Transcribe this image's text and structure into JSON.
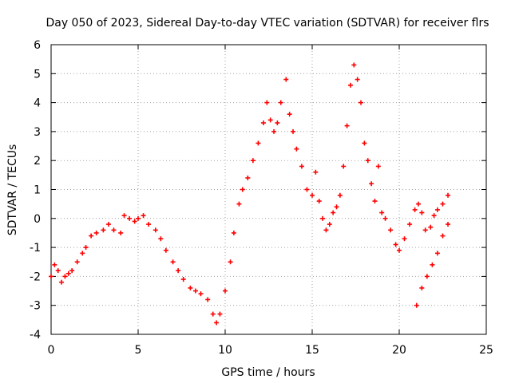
{
  "chart_data": {
    "type": "scatter",
    "title": "Day 050 of 2023, Sidereal Day-to-day VTEC variation (SDTVAR) for receiver flrs",
    "xlabel": "GPS time / hours",
    "ylabel": "SDTVAR / TECUs",
    "xlim": [
      0,
      25
    ],
    "ylim": [
      -4,
      6
    ],
    "xticks": [
      0,
      5,
      10,
      15,
      20,
      25
    ],
    "yticks": [
      -4,
      -3,
      -2,
      -1,
      0,
      1,
      2,
      3,
      4,
      5,
      6
    ],
    "grid": true,
    "marker": "+",
    "series": [
      {
        "name": "SDTVAR",
        "color": "#ff0000",
        "points": [
          [
            0.0,
            -2.0
          ],
          [
            0.2,
            -1.6
          ],
          [
            0.4,
            -1.8
          ],
          [
            0.6,
            -2.2
          ],
          [
            0.8,
            -2.0
          ],
          [
            1.0,
            -1.9
          ],
          [
            1.2,
            -1.8
          ],
          [
            1.5,
            -1.5
          ],
          [
            1.8,
            -1.2
          ],
          [
            2.0,
            -1.0
          ],
          [
            2.3,
            -0.6
          ],
          [
            2.6,
            -0.5
          ],
          [
            3.0,
            -0.4
          ],
          [
            3.3,
            -0.2
          ],
          [
            3.6,
            -0.4
          ],
          [
            4.0,
            -0.5
          ],
          [
            4.2,
            0.1
          ],
          [
            4.5,
            0.0
          ],
          [
            4.8,
            -0.1
          ],
          [
            5.0,
            0.0
          ],
          [
            5.3,
            0.1
          ],
          [
            5.6,
            -0.2
          ],
          [
            6.0,
            -0.4
          ],
          [
            6.3,
            -0.7
          ],
          [
            6.6,
            -1.1
          ],
          [
            7.0,
            -1.5
          ],
          [
            7.3,
            -1.8
          ],
          [
            7.6,
            -2.1
          ],
          [
            8.0,
            -2.4
          ],
          [
            8.3,
            -2.5
          ],
          [
            8.6,
            -2.6
          ],
          [
            9.0,
            -2.8
          ],
          [
            9.3,
            -3.3
          ],
          [
            9.5,
            -3.6
          ],
          [
            9.7,
            -3.3
          ],
          [
            10.0,
            -2.5
          ],
          [
            10.3,
            -1.5
          ],
          [
            10.5,
            -0.5
          ],
          [
            10.8,
            0.5
          ],
          [
            11.0,
            1.0
          ],
          [
            11.3,
            1.4
          ],
          [
            11.6,
            2.0
          ],
          [
            11.9,
            2.6
          ],
          [
            12.2,
            3.3
          ],
          [
            12.4,
            4.0
          ],
          [
            12.6,
            3.4
          ],
          [
            12.8,
            3.0
          ],
          [
            13.0,
            3.3
          ],
          [
            13.2,
            4.0
          ],
          [
            13.5,
            4.8
          ],
          [
            13.7,
            3.6
          ],
          [
            13.9,
            3.0
          ],
          [
            14.1,
            2.4
          ],
          [
            14.4,
            1.8
          ],
          [
            14.7,
            1.0
          ],
          [
            15.0,
            0.8
          ],
          [
            15.2,
            1.6
          ],
          [
            15.4,
            0.6
          ],
          [
            15.6,
            0.0
          ],
          [
            15.8,
            -0.4
          ],
          [
            16.0,
            -0.2
          ],
          [
            16.2,
            0.2
          ],
          [
            16.4,
            0.4
          ],
          [
            16.6,
            0.8
          ],
          [
            16.8,
            1.8
          ],
          [
            17.0,
            3.2
          ],
          [
            17.2,
            4.6
          ],
          [
            17.4,
            5.3
          ],
          [
            17.6,
            4.8
          ],
          [
            17.8,
            4.0
          ],
          [
            18.0,
            2.6
          ],
          [
            18.2,
            2.0
          ],
          [
            18.4,
            1.2
          ],
          [
            18.6,
            0.6
          ],
          [
            18.8,
            1.8
          ],
          [
            19.0,
            0.2
          ],
          [
            19.2,
            0.0
          ],
          [
            19.5,
            -0.4
          ],
          [
            19.8,
            -0.9
          ],
          [
            20.0,
            -1.1
          ],
          [
            20.3,
            -0.7
          ],
          [
            20.6,
            -0.2
          ],
          [
            20.9,
            0.3
          ],
          [
            21.1,
            0.5
          ],
          [
            21.3,
            0.2
          ],
          [
            21.5,
            -0.4
          ],
          [
            21.8,
            -0.3
          ],
          [
            22.0,
            0.1
          ],
          [
            22.2,
            0.3
          ],
          [
            22.5,
            0.5
          ],
          [
            22.8,
            0.8
          ],
          [
            21.0,
            -3.0
          ],
          [
            21.3,
            -2.4
          ],
          [
            21.6,
            -2.0
          ],
          [
            21.9,
            -1.6
          ],
          [
            22.2,
            -1.2
          ],
          [
            22.5,
            -0.6
          ],
          [
            22.8,
            -0.2
          ]
        ]
      }
    ]
  }
}
